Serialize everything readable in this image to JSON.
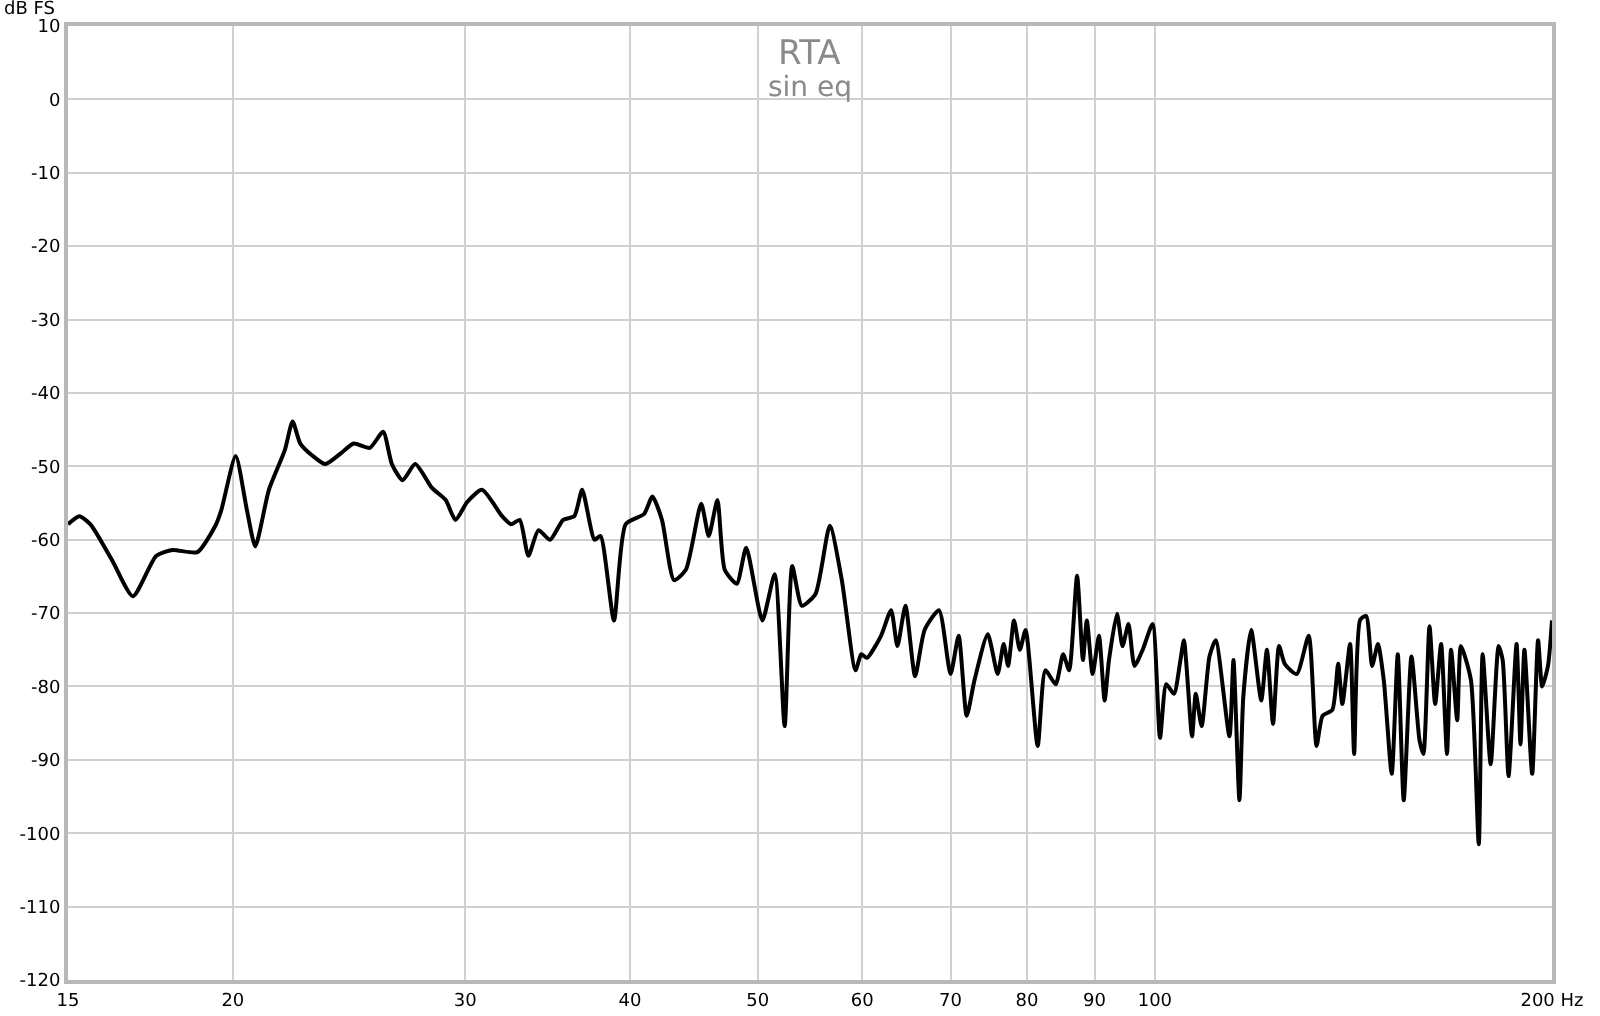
{
  "chart_data": {
    "type": "line",
    "title": "RTA",
    "subtitle": "sin eq",
    "ylabel": "dB FS",
    "log": "x",
    "grid": true,
    "marker": "none",
    "line_style": "solid",
    "xlim": [
      15,
      200
    ],
    "xticks": [
      15,
      20,
      30,
      40,
      50,
      60,
      70,
      80,
      90,
      100,
      {
        "value": 200,
        "label": "200 Hz"
      }
    ],
    "ylim": [
      -120,
      10
    ],
    "yticks": [
      10,
      0,
      -10,
      -20,
      -30,
      -40,
      -50,
      -60,
      -70,
      -80,
      -90,
      -100,
      -110,
      -120
    ],
    "x": [
      15,
      15.3,
      15.6,
      16.2,
      16.8,
      17.5,
      18.0,
      18.8,
      19.4,
      19.6,
      20.1,
      20.5,
      20.8,
      21.3,
      21.9,
      22.2,
      22.5,
      23.0,
      23.5,
      24.2,
      24.7,
      25.4,
      26.0,
      26.4,
      26.9,
      27.5,
      28.3,
      29.0,
      29.5,
      30.1,
      30.9,
      32.0,
      32.5,
      33.0,
      33.5,
      34.1,
      34.8,
      35.6,
      36.3,
      36.8,
      37.6,
      38.0,
      38.9,
      39.7,
      41.0,
      41.6,
      42.3,
      43.2,
      44.1,
      45.3,
      45.9,
      46.6,
      47.2,
      48.2,
      49.0,
      50.4,
      51.5,
      52.4,
      53.1,
      54.0,
      55.3,
      56.7,
      57.9,
      59.3,
      59.9,
      60.5,
      62.0,
      63.1,
      63.8,
      64.7,
      65.8,
      66.9,
      68.6,
      70.0,
      71.0,
      72.0,
      73.0,
      74.7,
      76.0,
      76.8,
      77.4,
      78.2,
      79.0,
      79.8,
      81.5,
      82.6,
      84.1,
      85.2,
      86.1,
      87.3,
      88.2,
      88.8,
      89.7,
      90.7,
      91.6,
      92.3,
      93.6,
      94.5,
      95.5,
      96.5,
      97.9,
      99.6,
      100.9,
      102.0,
      103.4,
      104.5,
      105.2,
      106.7,
      107.4,
      108.5,
      110.0,
      111.2,
      113.9,
      114.7,
      115.9,
      116.7,
      118.3,
      120.4,
      121.6,
      122.9,
      124.2,
      125.5,
      128.1,
      130.8,
      132.6,
      134.0,
      136.3,
      137.7,
      138.7,
      140.6,
      141.6,
      143.1,
      144.6,
      146.1,
      147.6,
      149.1,
      151.2,
      152.8,
      154.4,
      156.5,
      158.7,
      159.8,
      161.5,
      163.1,
      164.8,
      166.5,
      167.7,
      169.5,
      170.6,
      173.6,
      176.0,
      177.2,
      179.7,
      182.2,
      183.5,
      185.4,
      188.0,
      189.3,
      190.6,
      193.2,
      195.2,
      196.6,
      198.6,
      200
    ],
    "series": [
      {
        "color": "#000000",
        "values": [
          -57.9,
          -56.8,
          -57.9,
          -62.8,
          -67.7,
          -62.2,
          -61.4,
          -61.7,
          -58.1,
          -56.0,
          -48.6,
          -56.0,
          -60.9,
          -53.2,
          -47.8,
          -43.9,
          -46.9,
          -48.6,
          -49.7,
          -48.1,
          -46.9,
          -47.5,
          -45.3,
          -49.7,
          -51.9,
          -49.7,
          -52.9,
          -54.6,
          -57.3,
          -54.9,
          -53.2,
          -56.8,
          -57.9,
          -57.3,
          -62.2,
          -58.7,
          -60.0,
          -57.3,
          -56.8,
          -53.2,
          -60.0,
          -59.5,
          -71.0,
          -57.9,
          -56.5,
          -54.1,
          -57.3,
          -65.5,
          -64.1,
          -55.1,
          -59.5,
          -54.6,
          -64.1,
          -66.0,
          -61.1,
          -71.0,
          -64.7,
          -85.4,
          -63.6,
          -69.0,
          -67.4,
          -58.1,
          -65.5,
          -77.8,
          -75.6,
          -76.1,
          -73.1,
          -69.6,
          -74.5,
          -69.0,
          -78.6,
          -72.3,
          -69.6,
          -78.3,
          -73.1,
          -84.0,
          -79.1,
          -72.9,
          -78.3,
          -74.2,
          -77.2,
          -71.0,
          -75.0,
          -72.3,
          -88.1,
          -77.8,
          -79.7,
          -75.6,
          -77.8,
          -64.9,
          -76.4,
          -71.0,
          -78.3,
          -73.1,
          -81.9,
          -76.4,
          -70.1,
          -74.5,
          -71.5,
          -77.2,
          -75.0,
          -71.5,
          -87.0,
          -79.7,
          -81.0,
          -76.7,
          -73.7,
          -86.8,
          -81.0,
          -85.4,
          -75.9,
          -73.7,
          -86.8,
          -76.4,
          -95.5,
          -81.3,
          -72.3,
          -81.9,
          -75.0,
          -85.1,
          -74.5,
          -77.0,
          -78.3,
          -73.1,
          -88.1,
          -84.0,
          -83.2,
          -76.9,
          -82.4,
          -74.2,
          -89.2,
          -70.9,
          -70.4,
          -77.2,
          -74.2,
          -79.1,
          -91.9,
          -75.6,
          -95.5,
          -75.9,
          -87.3,
          -89.2,
          -71.8,
          -82.4,
          -74.2,
          -89.2,
          -75.0,
          -84.6,
          -74.5,
          -79.1,
          -101.5,
          -75.6,
          -90.6,
          -74.5,
          -76.4,
          -92.2,
          -74.2,
          -87.9,
          -75.0,
          -91.9,
          -73.7,
          -80.0,
          -77.2,
          -71.0
        ]
      }
    ]
  }
}
